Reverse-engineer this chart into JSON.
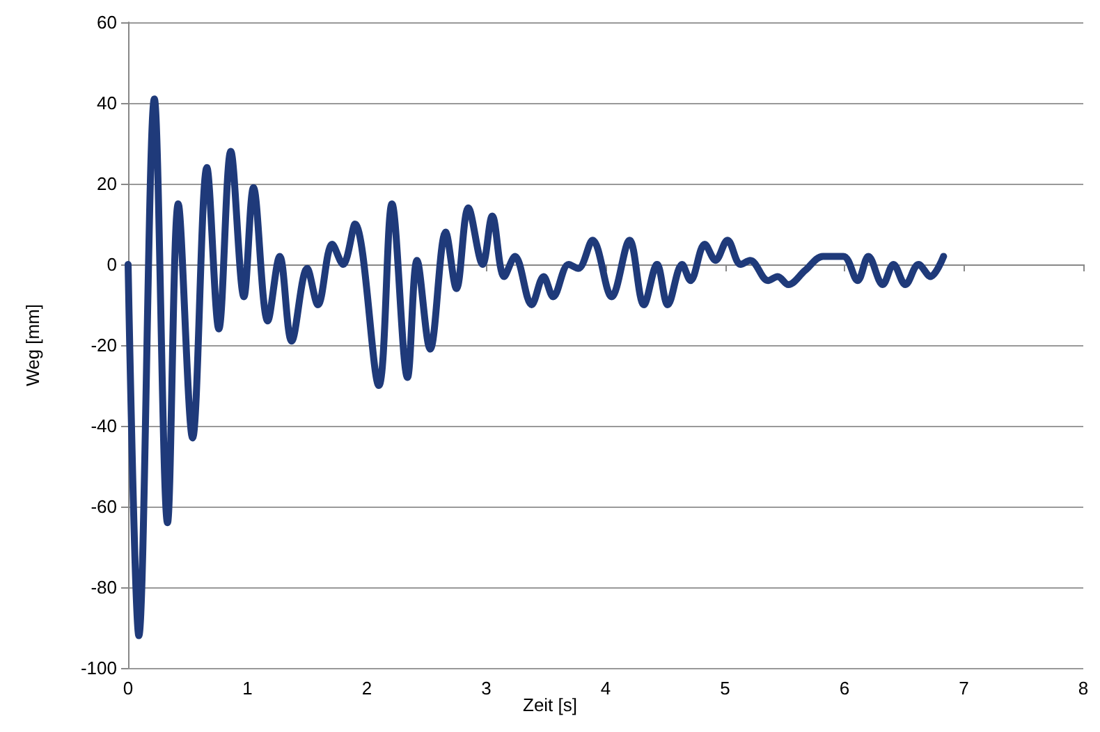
{
  "chart_data": {
    "type": "line",
    "xlabel": "Zeit [s]",
    "ylabel": "Weg [mm]",
    "x": [
      0,
      0.09,
      0.22,
      0.33,
      0.42,
      0.54,
      0.66,
      0.76,
      0.86,
      0.97,
      1.05,
      1.17,
      1.27,
      1.37,
      1.5,
      1.59,
      1.71,
      1.8,
      1.9,
      2.1,
      2.21,
      2.34,
      2.42,
      2.53,
      2.66,
      2.75,
      2.85,
      2.97,
      3.05,
      3.15,
      3.24,
      3.38,
      3.48,
      3.56,
      3.69,
      3.77,
      3.89,
      4.05,
      4.2,
      4.32,
      4.43,
      4.52,
      4.64,
      4.71,
      4.83,
      4.92,
      5.02,
      5.13,
      5.21,
      5.36,
      5.44,
      5.53,
      5.67,
      5.82,
      5.99,
      6.11,
      6.2,
      6.32,
      6.41,
      6.51,
      6.62,
      6.72,
      6.83
    ],
    "series": [
      {
        "color": "#1f3a7a",
        "values": [
          0,
          -92,
          41,
          -64,
          15,
          -43,
          24,
          -16,
          28,
          -8,
          19,
          -14,
          2,
          -19,
          -1,
          -10,
          5,
          0,
          10,
          -30,
          15,
          -28,
          1,
          -21,
          8,
          -6,
          14,
          0,
          12,
          -3,
          2,
          -10,
          -3,
          -8,
          0,
          -1,
          6,
          -8,
          6,
          -10,
          0,
          -10,
          0,
          -4,
          5,
          1,
          6,
          0,
          1,
          -4,
          -3,
          -5,
          -1.5,
          2,
          2,
          -4,
          2,
          -5,
          0,
          -5,
          0,
          -3,
          2
        ]
      }
    ],
    "xlim": [
      0,
      8
    ],
    "xticks": [
      0,
      1,
      2,
      3,
      4,
      5,
      6,
      7,
      8
    ],
    "ylim": [
      -100,
      60
    ],
    "yticks": [
      -100,
      -80,
      -60,
      -40,
      -20,
      0,
      20,
      40,
      60
    ],
    "grid": "y",
    "marker": "none",
    "line_style": "solid"
  }
}
